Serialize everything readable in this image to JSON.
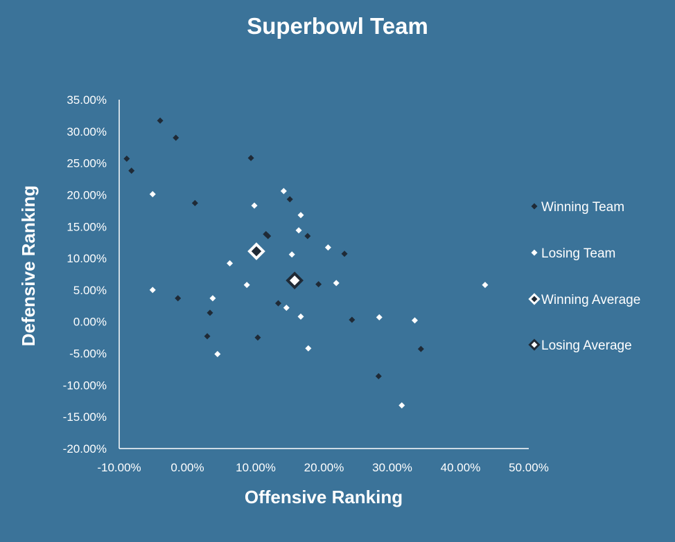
{
  "chart_data": {
    "type": "scatter",
    "title": "Superbowl Team",
    "xlabel": "Offensive Ranking",
    "ylabel": "Defensive Ranking",
    "xlim": [
      -0.1,
      0.5
    ],
    "ylim": [
      -0.2,
      0.35
    ],
    "x_ticks": [
      -0.1,
      0.0,
      0.1,
      0.2,
      0.3,
      0.4,
      0.5
    ],
    "y_ticks": [
      -0.2,
      -0.15,
      -0.1,
      -0.05,
      0.0,
      0.05,
      0.1,
      0.15,
      0.2,
      0.25,
      0.3,
      0.35
    ],
    "x_tick_labels": [
      "-10.00%",
      "0.00%",
      "10.00%",
      "20.00%",
      "30.00%",
      "40.00%",
      "50.00%"
    ],
    "y_tick_labels": [
      "-20.00%",
      "-15.00%",
      "-10.00%",
      "-5.00%",
      "0.00%",
      "5.00%",
      "10.00%",
      "15.00%",
      "20.00%",
      "25.00%",
      "30.00%",
      "35.00%"
    ],
    "grid": false,
    "legend_position": "right",
    "colors": {
      "background": "#3B7399",
      "winning": "#1F2A36",
      "losing": "#FFFFFF",
      "axis": "#FFFFFF",
      "text": "#FFFFFF"
    },
    "series": [
      {
        "name": "Winning Team",
        "marker": "small-diamond",
        "color": "#1F2A36",
        "points": [
          {
            "x": -0.04,
            "y": 0.317
          },
          {
            "x": -0.017,
            "y": 0.29
          },
          {
            "x": -0.089,
            "y": 0.257
          },
          {
            "x": -0.082,
            "y": 0.238
          },
          {
            "x": 0.093,
            "y": 0.258
          },
          {
            "x": 0.011,
            "y": 0.187
          },
          {
            "x": 0.15,
            "y": 0.193
          },
          {
            "x": 0.115,
            "y": 0.138
          },
          {
            "x": 0.118,
            "y": 0.135
          },
          {
            "x": 0.176,
            "y": 0.135
          },
          {
            "x": 0.23,
            "y": 0.107
          },
          {
            "x": 0.192,
            "y": 0.059
          },
          {
            "x": -0.014,
            "y": 0.037
          },
          {
            "x": 0.133,
            "y": 0.029
          },
          {
            "x": 0.033,
            "y": 0.014
          },
          {
            "x": 0.241,
            "y": 0.003
          },
          {
            "x": 0.029,
            "y": -0.023
          },
          {
            "x": 0.103,
            "y": -0.025
          },
          {
            "x": 0.342,
            "y": -0.043
          },
          {
            "x": 0.28,
            "y": -0.086
          }
        ]
      },
      {
        "name": "Losing Team",
        "marker": "small-diamond",
        "color": "#FFFFFF",
        "points": [
          {
            "x": -0.051,
            "y": 0.201
          },
          {
            "x": 0.141,
            "y": 0.206
          },
          {
            "x": 0.098,
            "y": 0.183
          },
          {
            "x": 0.166,
            "y": 0.168
          },
          {
            "x": 0.163,
            "y": 0.144
          },
          {
            "x": 0.206,
            "y": 0.117
          },
          {
            "x": 0.153,
            "y": 0.106
          },
          {
            "x": 0.062,
            "y": 0.092
          },
          {
            "x": 0.087,
            "y": 0.058
          },
          {
            "x": 0.218,
            "y": 0.061
          },
          {
            "x": 0.436,
            "y": 0.058
          },
          {
            "x": -0.051,
            "y": 0.05
          },
          {
            "x": 0.037,
            "y": 0.037
          },
          {
            "x": 0.145,
            "y": 0.022
          },
          {
            "x": 0.166,
            "y": 0.008
          },
          {
            "x": 0.281,
            "y": 0.007
          },
          {
            "x": 0.333,
            "y": 0.002
          },
          {
            "x": 0.177,
            "y": -0.042
          },
          {
            "x": 0.044,
            "y": -0.051
          },
          {
            "x": 0.314,
            "y": -0.132
          }
        ]
      },
      {
        "name": "Winning Average",
        "marker": "large-diamond-white-outline",
        "color": "#1F2A36",
        "points": [
          {
            "x": 0.101,
            "y": 0.111
          }
        ]
      },
      {
        "name": "Losing Average",
        "marker": "large-diamond-dark-outline",
        "color": "#FFFFFF",
        "points": [
          {
            "x": 0.157,
            "y": 0.065
          }
        ]
      }
    ]
  }
}
